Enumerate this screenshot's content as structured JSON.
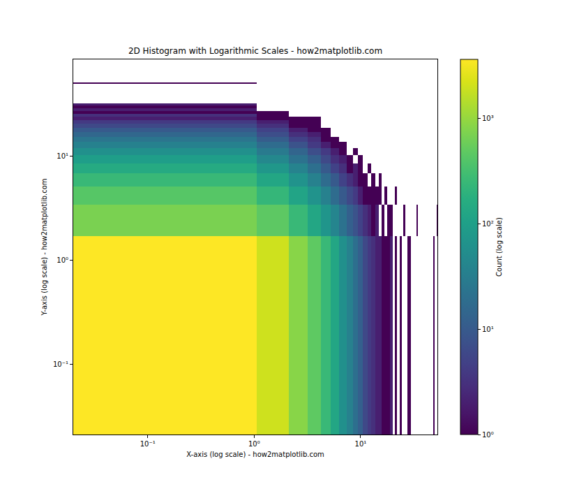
{
  "chart_data": {
    "type": "histogram2d",
    "title": "2D Histogram with Logarithmic Scales - how2matplotlib.com",
    "x_label": "X-axis (log scale) - how2matplotlib.com",
    "y_label": "Y-axis (log scale) - how2matplotlib.com",
    "log": true,
    "grid": false,
    "xlim": [
      0.02,
      52.6
    ],
    "ylim": [
      0.021,
      85
    ],
    "xticks": [
      {
        "value": 0.1,
        "label": "10⁻¹"
      },
      {
        "value": 1,
        "label": "10⁰"
      },
      {
        "value": 10,
        "label": "10¹"
      }
    ],
    "yticks": [
      {
        "value": 0.1,
        "label": "10⁻¹"
      },
      {
        "value": 1,
        "label": "10⁰"
      },
      {
        "value": 10,
        "label": "10¹"
      }
    ],
    "x_bins": [
      0,
      1.05,
      2.1,
      3.16,
      4.21,
      5.26,
      6.31,
      7.36,
      8.42,
      9.47,
      10.52,
      11.57,
      12.62,
      13.68,
      14.73,
      15.78,
      16.83,
      17.88,
      18.94,
      19.99,
      21.04,
      22.09,
      23.14,
      24.2,
      25.25,
      26.3,
      27.35,
      28.4,
      29.46,
      30.51,
      31.56,
      32.61,
      33.66,
      34.72,
      35.77,
      36.82,
      37.87,
      38.92,
      39.98,
      41.03,
      42.08,
      43.13,
      44.18,
      45.24,
      46.29,
      47.34,
      48.39,
      49.44,
      50.5,
      51.55,
      52.6
    ],
    "y_bins": [
      0,
      1.7,
      3.4,
      5.1,
      6.8,
      8.5,
      10.2,
      11.9,
      13.6,
      15.3,
      17,
      18.7,
      20.4,
      22.1,
      23.8,
      25.5,
      27.2,
      28.9,
      30.6,
      32.3,
      34,
      35.7,
      37.4,
      39.1,
      40.8,
      42.5,
      44.2,
      45.9,
      47.6,
      49.3,
      51
    ],
    "counts": [
      [
        3650,
        2000,
        850,
        480,
        250,
        130,
        60,
        35,
        20,
        12,
        6,
        4,
        3,
        2,
        2,
        1,
        1,
        1,
        2,
        0,
        1,
        0,
        1,
        0,
        0,
        0,
        1,
        1,
        0,
        0,
        0,
        0,
        0,
        0,
        0,
        0,
        0,
        0,
        0,
        0,
        0,
        0,
        0,
        0,
        0,
        0,
        1,
        0,
        0,
        0
      ],
      [
        700,
        470,
        250,
        130,
        70,
        40,
        22,
        12,
        8,
        5,
        3,
        2,
        1,
        2,
        0,
        1,
        0,
        1,
        1,
        0,
        0,
        0,
        0,
        0,
        1,
        0,
        0,
        0,
        0,
        0,
        0,
        0,
        1,
        0,
        0,
        0,
        0,
        0,
        0,
        0,
        0,
        0,
        0,
        0,
        0,
        0,
        0,
        0,
        0,
        1
      ],
      [
        420,
        230,
        120,
        65,
        35,
        18,
        10,
        6,
        4,
        2,
        1,
        1,
        1,
        1,
        1,
        0,
        1,
        0,
        0,
        0,
        1,
        0,
        0,
        0,
        0,
        0,
        0,
        0,
        0,
        0,
        0,
        0,
        0,
        0,
        0,
        0,
        0,
        0,
        0,
        0,
        0,
        0,
        0,
        0,
        0,
        0,
        0,
        0,
        0,
        0
      ],
      [
        250,
        130,
        65,
        35,
        18,
        10,
        5,
        3,
        2,
        1,
        1,
        0,
        1,
        0,
        1,
        0,
        0,
        0,
        0,
        0,
        0,
        0,
        0,
        0,
        0,
        0,
        0,
        0,
        0,
        0,
        0,
        0,
        0,
        0,
        0,
        0,
        0,
        0,
        0,
        0,
        0,
        0,
        0,
        0,
        0,
        0,
        0,
        0,
        0,
        0
      ],
      [
        150,
        75,
        38,
        20,
        10,
        5,
        3,
        1,
        2,
        1,
        0,
        1,
        0,
        0,
        0,
        0,
        0,
        0,
        0,
        0,
        0,
        0,
        0,
        0,
        0,
        0,
        0,
        0,
        0,
        0,
        0,
        0,
        0,
        0,
        0,
        0,
        0,
        0,
        0,
        0,
        0,
        0,
        0,
        0,
        0,
        0,
        0,
        0,
        0,
        0
      ],
      [
        95,
        45,
        22,
        12,
        6,
        3,
        2,
        1,
        0,
        1,
        0,
        0,
        0,
        0,
        0,
        0,
        0,
        0,
        0,
        0,
        0,
        0,
        0,
        0,
        0,
        0,
        0,
        0,
        0,
        0,
        0,
        0,
        0,
        0,
        0,
        0,
        0,
        0,
        0,
        0,
        0,
        0,
        0,
        0,
        0,
        0,
        0,
        0,
        0,
        0
      ],
      [
        60,
        28,
        14,
        7,
        4,
        2,
        1,
        0,
        1,
        0,
        0,
        0,
        0,
        0,
        0,
        0,
        0,
        0,
        0,
        0,
        0,
        0,
        0,
        0,
        0,
        0,
        0,
        0,
        0,
        0,
        0,
        0,
        0,
        0,
        0,
        0,
        0,
        0,
        0,
        0,
        0,
        0,
        0,
        0,
        0,
        0,
        0,
        0,
        0,
        0
      ],
      [
        36,
        18,
        8,
        4,
        2,
        1,
        1,
        0,
        0,
        0,
        0,
        0,
        0,
        0,
        0,
        0,
        0,
        0,
        0,
        0,
        0,
        0,
        0,
        0,
        0,
        0,
        0,
        0,
        0,
        0,
        0,
        0,
        0,
        0,
        0,
        0,
        0,
        0,
        0,
        0,
        0,
        0,
        0,
        0,
        0,
        0,
        0,
        0,
        0,
        0
      ],
      [
        24,
        11,
        5,
        3,
        1,
        1,
        0,
        0,
        0,
        0,
        0,
        0,
        0,
        0,
        0,
        0,
        0,
        0,
        0,
        0,
        0,
        0,
        0,
        0,
        0,
        0,
        0,
        0,
        0,
        0,
        0,
        0,
        0,
        0,
        0,
        0,
        0,
        0,
        0,
        0,
        0,
        0,
        0,
        0,
        0,
        0,
        0,
        0,
        0,
        0
      ],
      [
        15,
        7,
        3,
        2,
        1,
        0,
        0,
        0,
        0,
        0,
        0,
        0,
        0,
        0,
        0,
        0,
        0,
        0,
        0,
        0,
        0,
        0,
        0,
        0,
        0,
        0,
        0,
        0,
        0,
        0,
        0,
        0,
        0,
        0,
        0,
        0,
        0,
        0,
        0,
        0,
        0,
        0,
        0,
        0,
        0,
        0,
        0,
        0,
        0,
        0
      ],
      [
        10,
        5,
        2,
        1,
        1,
        0,
        0,
        0,
        0,
        0,
        0,
        0,
        0,
        0,
        0,
        0,
        0,
        0,
        0,
        0,
        0,
        0,
        0,
        0,
        0,
        0,
        0,
        0,
        0,
        0,
        0,
        0,
        0,
        0,
        0,
        0,
        0,
        0,
        0,
        0,
        0,
        0,
        0,
        0,
        0,
        0,
        0,
        0,
        0,
        0
      ],
      [
        6,
        3,
        1,
        1,
        0,
        0,
        0,
        0,
        0,
        0,
        0,
        0,
        0,
        0,
        0,
        0,
        0,
        0,
        0,
        0,
        0,
        0,
        0,
        0,
        0,
        0,
        0,
        0,
        0,
        0,
        0,
        0,
        0,
        0,
        0,
        0,
        0,
        0,
        0,
        0,
        0,
        0,
        0,
        0,
        0,
        0,
        0,
        0,
        0,
        0
      ],
      [
        4,
        2,
        1,
        1,
        0,
        0,
        0,
        0,
        0,
        0,
        0,
        0,
        0,
        0,
        0,
        0,
        0,
        0,
        0,
        0,
        0,
        0,
        0,
        0,
        0,
        0,
        0,
        0,
        0,
        0,
        0,
        0,
        0,
        0,
        0,
        0,
        0,
        0,
        0,
        0,
        0,
        0,
        0,
        0,
        0,
        0,
        0,
        0,
        0,
        0
      ],
      [
        2,
        1,
        1,
        1,
        0,
        0,
        0,
        0,
        0,
        0,
        0,
        0,
        0,
        0,
        0,
        0,
        0,
        0,
        0,
        0,
        0,
        0,
        0,
        0,
        0,
        0,
        0,
        0,
        0,
        0,
        0,
        0,
        0,
        0,
        0,
        0,
        0,
        0,
        0,
        0,
        0,
        0,
        0,
        0,
        0,
        0,
        0,
        0,
        0,
        0
      ],
      [
        3,
        1,
        0,
        0,
        0,
        0,
        0,
        0,
        0,
        0,
        0,
        0,
        0,
        0,
        0,
        0,
        0,
        0,
        0,
        0,
        0,
        0,
        0,
        0,
        0,
        0,
        0,
        0,
        0,
        0,
        0,
        0,
        0,
        0,
        0,
        0,
        0,
        0,
        0,
        0,
        0,
        0,
        0,
        0,
        0,
        0,
        0,
        0,
        0,
        0
      ],
      [
        1,
        1,
        0,
        0,
        0,
        0,
        0,
        0,
        0,
        0,
        0,
        0,
        0,
        0,
        0,
        0,
        0,
        0,
        0,
        0,
        0,
        0,
        0,
        0,
        0,
        0,
        0,
        0,
        0,
        0,
        0,
        0,
        0,
        0,
        0,
        0,
        0,
        0,
        0,
        0,
        0,
        0,
        0,
        0,
        0,
        0,
        0,
        0,
        0,
        0
      ],
      [
        2,
        0,
        0,
        0,
        0,
        0,
        0,
        0,
        0,
        0,
        0,
        0,
        0,
        0,
        0,
        0,
        0,
        0,
        0,
        0,
        0,
        0,
        0,
        0,
        0,
        0,
        0,
        0,
        0,
        0,
        0,
        0,
        0,
        0,
        0,
        0,
        0,
        0,
        0,
        0,
        0,
        0,
        0,
        0,
        0,
        0,
        0,
        0,
        0,
        0
      ],
      [
        1,
        0,
        0,
        0,
        0,
        0,
        0,
        0,
        0,
        0,
        0,
        0,
        0,
        0,
        0,
        0,
        0,
        0,
        0,
        0,
        0,
        0,
        0,
        0,
        0,
        0,
        0,
        0,
        0,
        0,
        0,
        0,
        0,
        0,
        0,
        0,
        0,
        0,
        0,
        0,
        0,
        0,
        0,
        0,
        0,
        0,
        0,
        0,
        0,
        0
      ],
      [
        2,
        0,
        0,
        0,
        0,
        0,
        0,
        0,
        0,
        0,
        0,
        0,
        0,
        0,
        0,
        0,
        0,
        0,
        0,
        0,
        0,
        0,
        0,
        0,
        0,
        0,
        0,
        0,
        0,
        0,
        0,
        0,
        0,
        0,
        0,
        0,
        0,
        0,
        0,
        0,
        0,
        0,
        0,
        0,
        0,
        0,
        0,
        0,
        0,
        0
      ],
      [
        0,
        0,
        0,
        0,
        0,
        0,
        0,
        0,
        0,
        0,
        0,
        0,
        0,
        0,
        0,
        0,
        0,
        0,
        0,
        0,
        0,
        0,
        0,
        0,
        0,
        0,
        0,
        0,
        0,
        0,
        0,
        0,
        0,
        0,
        0,
        0,
        0,
        0,
        0,
        0,
        0,
        0,
        0,
        0,
        0,
        0,
        0,
        0,
        0,
        0
      ],
      [
        0,
        0,
        0,
        0,
        0,
        0,
        0,
        0,
        0,
        0,
        0,
        0,
        0,
        0,
        0,
        0,
        0,
        0,
        0,
        0,
        0,
        0,
        0,
        0,
        0,
        0,
        0,
        0,
        0,
        0,
        0,
        0,
        0,
        0,
        0,
        0,
        0,
        0,
        0,
        0,
        0,
        0,
        0,
        0,
        0,
        0,
        0,
        0,
        0,
        0
      ],
      [
        0,
        0,
        0,
        0,
        0,
        0,
        0,
        0,
        0,
        0,
        0,
        0,
        0,
        0,
        0,
        0,
        0,
        0,
        0,
        0,
        0,
        0,
        0,
        0,
        0,
        0,
        0,
        0,
        0,
        0,
        0,
        0,
        0,
        0,
        0,
        0,
        0,
        0,
        0,
        0,
        0,
        0,
        0,
        0,
        0,
        0,
        0,
        0,
        0,
        0
      ],
      [
        0,
        0,
        0,
        0,
        0,
        0,
        0,
        0,
        0,
        0,
        0,
        0,
        0,
        0,
        0,
        0,
        0,
        0,
        0,
        0,
        0,
        0,
        0,
        0,
        0,
        0,
        0,
        0,
        0,
        0,
        0,
        0,
        0,
        0,
        0,
        0,
        0,
        0,
        0,
        0,
        0,
        0,
        0,
        0,
        0,
        0,
        0,
        0,
        0,
        0
      ],
      [
        0,
        0,
        0,
        0,
        0,
        0,
        0,
        0,
        0,
        0,
        0,
        0,
        0,
        0,
        0,
        0,
        0,
        0,
        0,
        0,
        0,
        0,
        0,
        0,
        0,
        0,
        0,
        0,
        0,
        0,
        0,
        0,
        0,
        0,
        0,
        0,
        0,
        0,
        0,
        0,
        0,
        0,
        0,
        0,
        0,
        0,
        0,
        0,
        0,
        0
      ],
      [
        0,
        0,
        0,
        0,
        0,
        0,
        0,
        0,
        0,
        0,
        0,
        0,
        0,
        0,
        0,
        0,
        0,
        0,
        0,
        0,
        0,
        0,
        0,
        0,
        0,
        0,
        0,
        0,
        0,
        0,
        0,
        0,
        0,
        0,
        0,
        0,
        0,
        0,
        0,
        0,
        0,
        0,
        0,
        0,
        0,
        0,
        0,
        0,
        0,
        0
      ],
      [
        0,
        0,
        0,
        0,
        0,
        0,
        0,
        0,
        0,
        0,
        0,
        0,
        0,
        0,
        0,
        0,
        0,
        0,
        0,
        0,
        0,
        0,
        0,
        0,
        0,
        0,
        0,
        0,
        0,
        0,
        0,
        0,
        0,
        0,
        0,
        0,
        0,
        0,
        0,
        0,
        0,
        0,
        0,
        0,
        0,
        0,
        0,
        0,
        0,
        0
      ],
      [
        0,
        0,
        0,
        0,
        0,
        0,
        0,
        0,
        0,
        0,
        0,
        0,
        0,
        0,
        0,
        0,
        0,
        0,
        0,
        0,
        0,
        0,
        0,
        0,
        0,
        0,
        0,
        0,
        0,
        0,
        0,
        0,
        0,
        0,
        0,
        0,
        0,
        0,
        0,
        0,
        0,
        0,
        0,
        0,
        0,
        0,
        0,
        0,
        0,
        0
      ],
      [
        0,
        0,
        0,
        0,
        0,
        0,
        0,
        0,
        0,
        0,
        0,
        0,
        0,
        0,
        0,
        0,
        0,
        0,
        0,
        0,
        0,
        0,
        0,
        0,
        0,
        0,
        0,
        0,
        0,
        0,
        0,
        0,
        0,
        0,
        0,
        0,
        0,
        0,
        0,
        0,
        0,
        0,
        0,
        0,
        0,
        0,
        0,
        0,
        0,
        0
      ],
      [
        0,
        0,
        0,
        0,
        0,
        0,
        0,
        0,
        0,
        0,
        0,
        0,
        0,
        0,
        0,
        0,
        0,
        0,
        0,
        0,
        0,
        0,
        0,
        0,
        0,
        0,
        0,
        0,
        0,
        0,
        0,
        0,
        0,
        0,
        0,
        0,
        0,
        0,
        0,
        0,
        0,
        0,
        0,
        0,
        0,
        0,
        0,
        0,
        0,
        0
      ],
      [
        1,
        0,
        0,
        0,
        0,
        0,
        0,
        0,
        0,
        0,
        0,
        0,
        0,
        0,
        0,
        0,
        0,
        0,
        0,
        0,
        0,
        0,
        0,
        0,
        0,
        0,
        0,
        0,
        0,
        0,
        0,
        0,
        0,
        0,
        0,
        0,
        0,
        0,
        0,
        0,
        0,
        0,
        0,
        0,
        0,
        0,
        0,
        0,
        0,
        0
      ]
    ],
    "colorbar_label": "Count (log scale)",
    "colorbar_range": [
      1,
      3650
    ],
    "colorbar_ticks": [
      {
        "value": 1,
        "label": "10⁰"
      },
      {
        "value": 10,
        "label": "10¹"
      },
      {
        "value": 100,
        "label": "10²"
      },
      {
        "value": 1000,
        "label": "10³"
      }
    ]
  }
}
